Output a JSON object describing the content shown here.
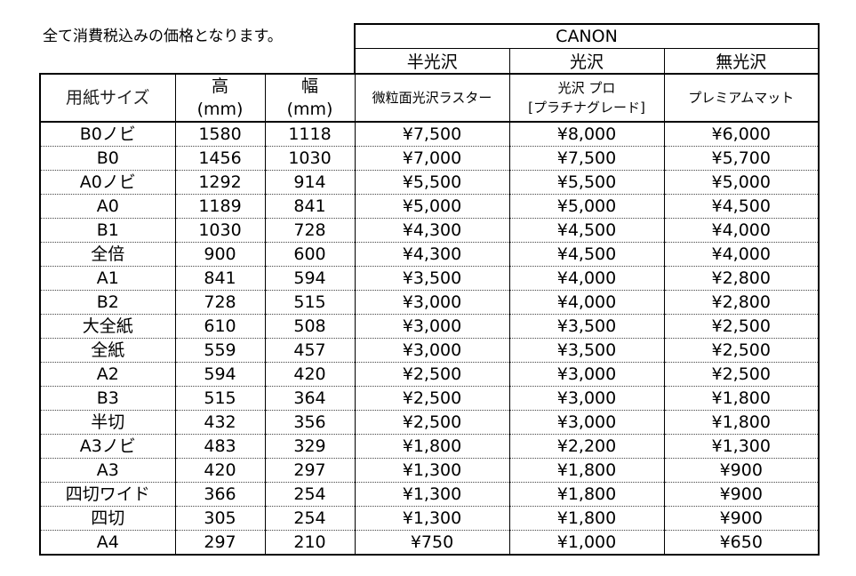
{
  "note": "全て消費税込みの価格となります。",
  "brand": "CANON",
  "finish_types": [
    "半光沢",
    "光沢",
    "無光沢"
  ],
  "columns": {
    "size": "用紙サイズ",
    "height": "高\n(mm)",
    "width": "幅\n(mm)",
    "paper_semigloss": "微粒面光沢ラスター",
    "paper_gloss": "光沢 プロ\n[プラチナグレード]",
    "paper_matte": "プレミアムマット"
  },
  "rows": [
    [
      "B0ノビ",
      "1580",
      "1118",
      "¥7,500",
      "¥8,000",
      "¥6,000"
    ],
    [
      "B0",
      "1456",
      "1030",
      "¥7,000",
      "¥7,500",
      "¥5,700"
    ],
    [
      "A0ノビ",
      "1292",
      "914",
      "¥5,500",
      "¥5,500",
      "¥5,000"
    ],
    [
      "A0",
      "1189",
      "841",
      "¥5,000",
      "¥5,000",
      "¥4,500"
    ],
    [
      "B1",
      "1030",
      "728",
      "¥4,300",
      "¥4,500",
      "¥4,000"
    ],
    [
      "全倍",
      "900",
      "600",
      "¥4,300",
      "¥4,500",
      "¥4,000"
    ],
    [
      "A1",
      "841",
      "594",
      "¥3,500",
      "¥4,000",
      "¥2,800"
    ],
    [
      "B2",
      "728",
      "515",
      "¥3,000",
      "¥4,000",
      "¥2,800"
    ],
    [
      "大全紙",
      "610",
      "508",
      "¥3,000",
      "¥3,500",
      "¥2,500"
    ],
    [
      "全紙",
      "559",
      "457",
      "¥3,000",
      "¥3,500",
      "¥2,500"
    ],
    [
      "A2",
      "594",
      "420",
      "¥2,500",
      "¥3,000",
      "¥2,500"
    ],
    [
      "B3",
      "515",
      "364",
      "¥2,500",
      "¥3,000",
      "¥1,800"
    ],
    [
      "半切",
      "432",
      "356",
      "¥2,500",
      "¥3,000",
      "¥1,800"
    ],
    [
      "A3ノビ",
      "483",
      "329",
      "¥1,800",
      "¥2,200",
      "¥1,300"
    ],
    [
      "A3",
      "420",
      "297",
      "¥1,300",
      "¥1,800",
      "¥900"
    ],
    [
      "四切ワイド",
      "366",
      "254",
      "¥1,300",
      "¥1,800",
      "¥900"
    ],
    [
      "四切",
      "305",
      "254",
      "¥1,300",
      "¥1,800",
      "¥900"
    ],
    [
      "A4",
      "297",
      "210",
      "¥750",
      "¥1,000",
      "¥650"
    ]
  ]
}
